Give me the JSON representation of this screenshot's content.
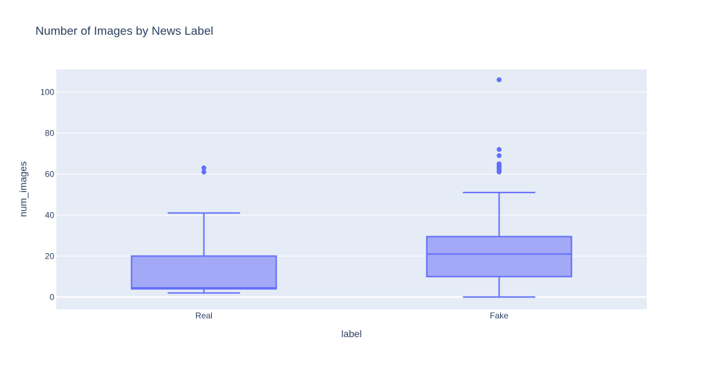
{
  "chart_data": {
    "type": "box",
    "title": "Number of Images by News Label",
    "xlabel": "label",
    "ylabel": "num_images",
    "ylim": [
      -6,
      111
    ],
    "yticks": [
      0,
      20,
      40,
      60,
      80,
      100
    ],
    "grid": true,
    "colors": {
      "plot_bg": "#e5ecf6",
      "grid": "#ffffff",
      "box_line": "#636efa",
      "box_fill": "#a3a9f6",
      "text": "#2a3f5f"
    },
    "categories": [
      "Real",
      "Fake"
    ],
    "boxes": [
      {
        "category": "Real",
        "min": 2,
        "q1": 4,
        "median": 4.5,
        "q3": 20,
        "max": 41,
        "outliers": [
          61,
          63
        ]
      },
      {
        "category": "Fake",
        "min": 0,
        "q1": 10,
        "median": 21,
        "q3": 29.5,
        "max": 51,
        "outliers": [
          61,
          61.5,
          62,
          62.5,
          63,
          63.5,
          64,
          64.5,
          65,
          69,
          72,
          106
        ]
      }
    ]
  }
}
